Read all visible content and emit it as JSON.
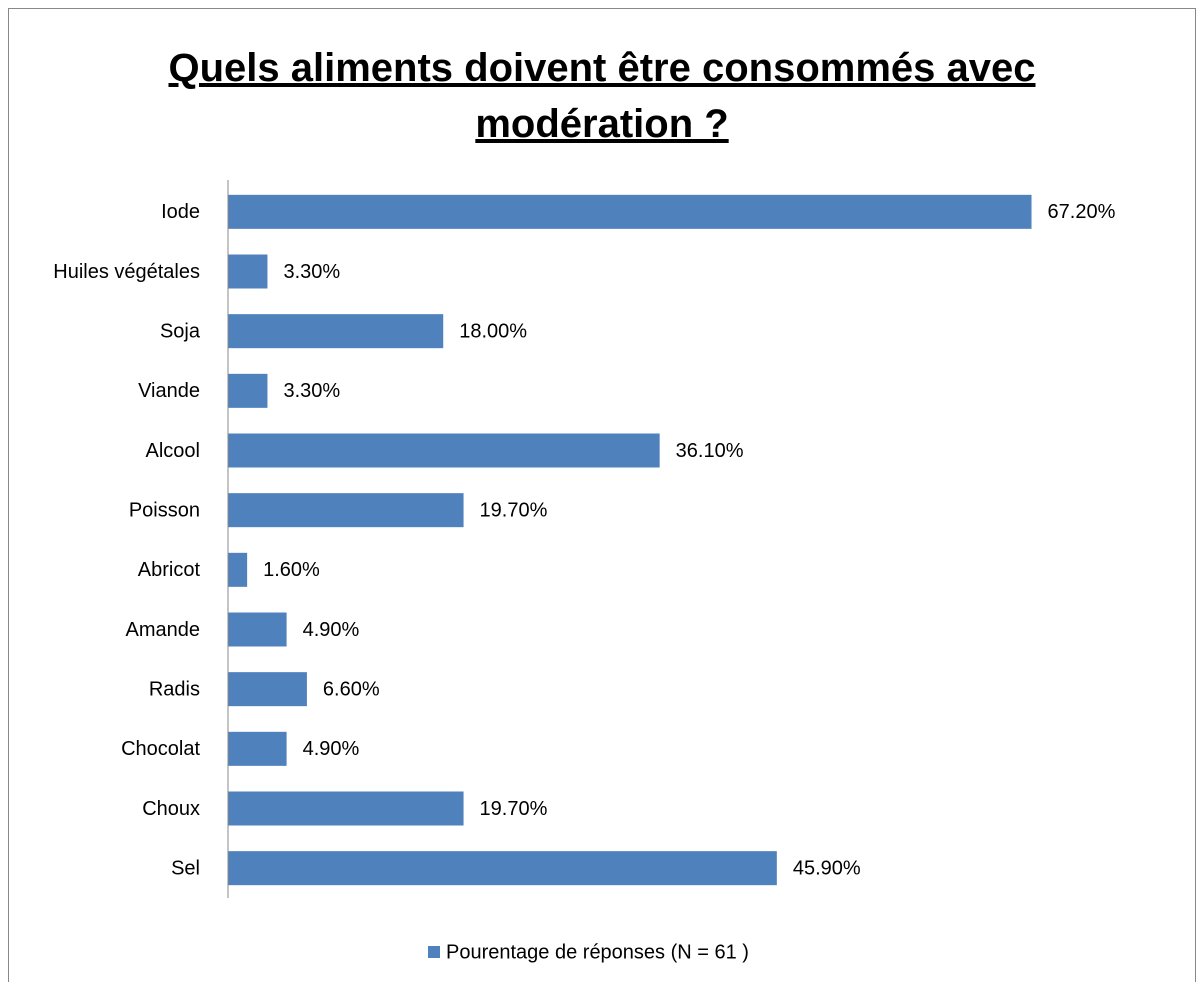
{
  "chart_data": {
    "type": "bar",
    "orientation": "horizontal",
    "title": "Quels aliments doivent être consommés avec modération ?",
    "categories": [
      "Iode",
      "Huiles végétales",
      "Soja",
      "Viande",
      "Alcool",
      "Poisson",
      "Abricot",
      "Amande",
      "Radis",
      "Chocolat",
      "Choux",
      "Sel"
    ],
    "series": [
      {
        "name": "Pourentage de réponses (N = 61 )",
        "color": "#4f81bd",
        "values": [
          67.2,
          3.3,
          18.0,
          3.3,
          36.1,
          19.7,
          1.6,
          4.9,
          6.6,
          4.9,
          19.7,
          45.9
        ],
        "value_labels": [
          "67.20%",
          "3.30%",
          "18.00%",
          "3.30%",
          "36.10%",
          "19.70%",
          "1.60%",
          "4.90%",
          "6.60%",
          "4.90%",
          "19.70%",
          "45.90%"
        ]
      }
    ],
    "xlim": [
      0,
      70
    ],
    "legend": "bottom"
  }
}
